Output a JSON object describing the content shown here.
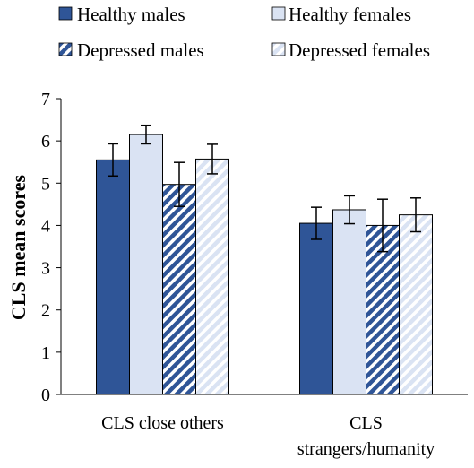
{
  "chart_data": {
    "type": "bar",
    "title": "",
    "xlabel": "",
    "ylabel": "CLS mean scores",
    "ylim": [
      0,
      7
    ],
    "yticks": [
      0,
      1,
      2,
      3,
      4,
      5,
      6,
      7
    ],
    "grid": false,
    "legend_position": "top",
    "categories": [
      [
        "CLS close others"
      ],
      [
        "CLS",
        "strangers/humanity"
      ]
    ],
    "series": [
      {
        "name": "Healthy males",
        "values": [
          5.55,
          4.05
        ],
        "error": [
          0.38,
          0.38
        ],
        "color": "#2f5597",
        "pattern": "solid"
      },
      {
        "name": "Healthy females",
        "values": [
          6.15,
          4.37
        ],
        "error": [
          0.22,
          0.33
        ],
        "color": "#dae3f3",
        "pattern": "solid"
      },
      {
        "name": "Depressed males",
        "values": [
          4.97,
          4.0
        ],
        "error": [
          0.52,
          0.62
        ],
        "color": "#2f5597",
        "pattern": "hatch"
      },
      {
        "name": "Depressed females",
        "values": [
          5.57,
          4.25
        ],
        "error": [
          0.35,
          0.4
        ],
        "color": "#dae3f3",
        "pattern": "hatch"
      }
    ]
  }
}
